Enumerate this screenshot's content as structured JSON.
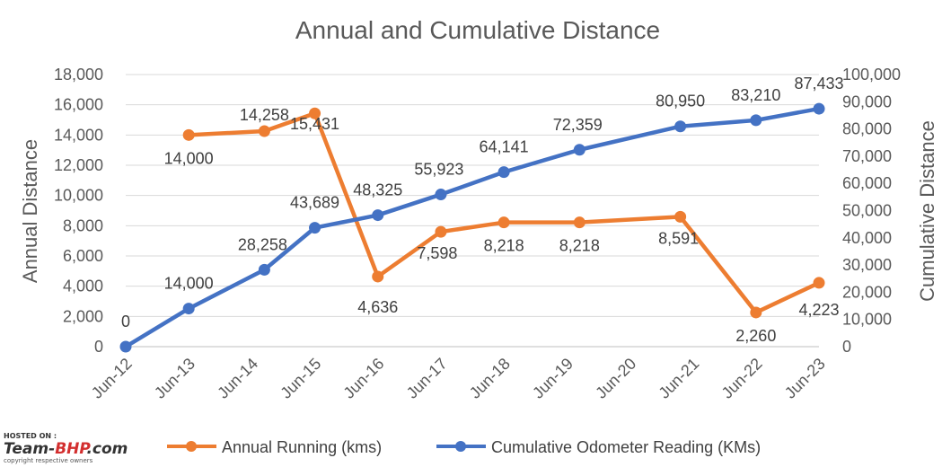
{
  "chart_data": {
    "type": "line",
    "title": "Annual and Cumulative Distance",
    "ylabel": "Annual Distance",
    "y2label": "Cumulative Distance",
    "categories": [
      "Jun-12",
      "Jun-13",
      "Jun-14",
      "Jun-15",
      "Jun-16",
      "Jun-17",
      "Jun-18",
      "Jun-19",
      "Jun-20",
      "Jun-21",
      "Jun-22",
      "Jun-23"
    ],
    "ylim": [
      0,
      18000
    ],
    "y2lim": [
      0,
      100000
    ],
    "yticks": [
      "0",
      "2,000",
      "4,000",
      "6,000",
      "8,000",
      "10,000",
      "12,000",
      "14,000",
      "16,000",
      "18,000"
    ],
    "y2ticks": [
      "0",
      "10,000",
      "20,000",
      "30,000",
      "40,000",
      "50,000",
      "60,000",
      "70,000",
      "80,000",
      "90,000",
      "100,000"
    ],
    "grid": "horizontal",
    "legend_position": "bottom",
    "series": [
      {
        "name": "Annual Running (kms)",
        "axis": "left",
        "color": "#ED7D31",
        "points": [
          {
            "x": 1,
            "y": 14000,
            "label": "14,000"
          },
          {
            "x": 2.2,
            "y": 14258,
            "label": "14,258"
          },
          {
            "x": 3,
            "y": 15431,
            "label": "15,431"
          },
          {
            "x": 4,
            "y": 4636,
            "label": "4,636"
          },
          {
            "x": 5,
            "y": 7598,
            "label": "7,598"
          },
          {
            "x": 6,
            "y": 8218,
            "label": "8,218"
          },
          {
            "x": 7.2,
            "y": 8218,
            "label": "8,218"
          },
          {
            "x": 8.8,
            "y": 8591,
            "label": "8,591"
          },
          {
            "x": 10,
            "y": 2260,
            "label": "2,260"
          },
          {
            "x": 11,
            "y": 4223,
            "label": "4,223"
          }
        ]
      },
      {
        "name": "Cumulative Odometer Reading (KMs)",
        "axis": "right",
        "color": "#4472C4",
        "points": [
          {
            "x": 0,
            "y": 0,
            "label": "0"
          },
          {
            "x": 1,
            "y": 14000,
            "label": "14,000"
          },
          {
            "x": 2.2,
            "y": 28258,
            "label": "28,258"
          },
          {
            "x": 3,
            "y": 43689,
            "label": "43,689"
          },
          {
            "x": 4,
            "y": 48325,
            "label": "48,325"
          },
          {
            "x": 5,
            "y": 55923,
            "label": "55,923"
          },
          {
            "x": 6,
            "y": 64141,
            "label": "64,141"
          },
          {
            "x": 7.2,
            "y": 72359,
            "label": "72,359"
          },
          {
            "x": 8.8,
            "y": 80950,
            "label": "80,950"
          },
          {
            "x": 10,
            "y": 83210,
            "label": "83,210"
          },
          {
            "x": 11,
            "y": 87433,
            "label": "87,433"
          }
        ]
      }
    ]
  },
  "watermark": {
    "hosted_on": "HOSTED ON :",
    "brand_left": "Team-",
    "brand_mid": "BHP",
    "brand_right": ".com",
    "copyright": "copyright respective owners",
    "brand_color": "#D32F2F"
  }
}
